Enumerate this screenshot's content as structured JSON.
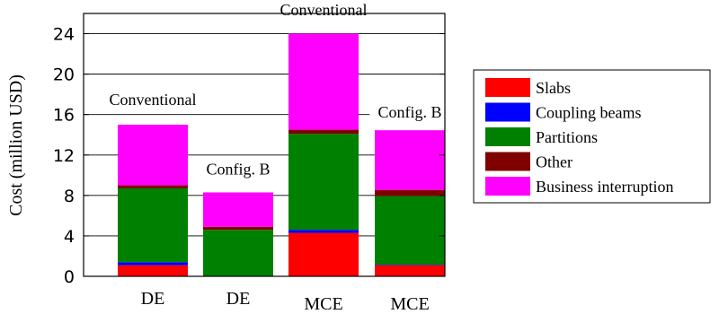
{
  "chart_data": {
    "type": "bar",
    "stacked": true,
    "ylabel": "Cost (million USD)",
    "ylim": [
      0,
      26
    ],
    "yticks": [
      0,
      4,
      8,
      12,
      16,
      20,
      24
    ],
    "grid": "horizontal",
    "legend_position": "right",
    "categories": [
      "DE",
      "DE",
      "MCE",
      "MCE"
    ],
    "bar_annotations": [
      "Conventional",
      "Config. B",
      "Conventional",
      "Config. B"
    ],
    "series": [
      {
        "name": "Slabs",
        "color": "#ff0000",
        "values": [
          1.1,
          0.0,
          4.3,
          1.1
        ]
      },
      {
        "name": "Coupling beams",
        "color": "#0000ff",
        "values": [
          0.3,
          0.0,
          0.3,
          0.05
        ]
      },
      {
        "name": "Partitions",
        "color": "#008000",
        "values": [
          7.3,
          4.6,
          9.5,
          6.8
        ]
      },
      {
        "name": "Other",
        "color": "#800000",
        "values": [
          0.3,
          0.3,
          0.4,
          0.6
        ]
      },
      {
        "name": "Business interruption",
        "color": "#ff00ff",
        "values": [
          6.0,
          3.4,
          9.5,
          5.9
        ]
      }
    ]
  }
}
